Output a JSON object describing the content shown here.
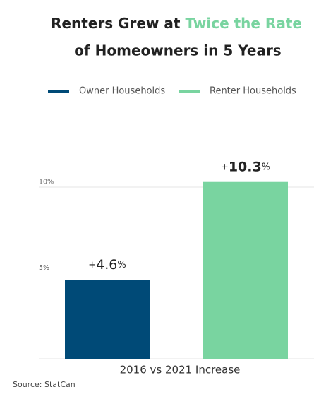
{
  "chart_data": {
    "type": "bar",
    "title": [
      "Renters Grew at",
      "Twice the Rate",
      "of Homeowners in 5 Years"
    ],
    "title_highlight_color": "#79d4a0",
    "categories": [
      "2016 vs 2021 Increase"
    ],
    "series": [
      {
        "name": "Owner Households",
        "color": "#004a77",
        "values": [
          4.6
        ],
        "value_labels": [
          "+4.6%"
        ]
      },
      {
        "name": "Renter Households",
        "color": "#79d4a0",
        "values": [
          10.3
        ],
        "value_labels": [
          "+10.3%"
        ]
      }
    ],
    "ylim": [
      0,
      15
    ],
    "yticks": [
      {
        "value": 5,
        "label": "5%"
      },
      {
        "value": 10,
        "label": "10%"
      }
    ],
    "grid": true,
    "legend": "top",
    "source": "Source: StatCan"
  }
}
